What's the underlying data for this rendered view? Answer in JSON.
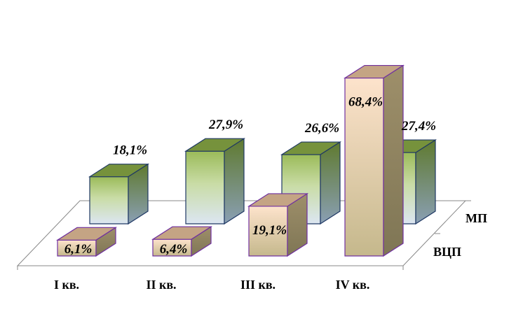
{
  "chart_data": {
    "type": "bar",
    "subtype": "3d-clustered-depth",
    "categories": [
      "I кв.",
      "II кв.",
      "III кв.",
      "IV кв."
    ],
    "series": [
      {
        "name": "МП",
        "values": [
          18.1,
          27.9,
          26.6,
          27.4
        ],
        "labels": [
          "18,1%",
          "27,9%",
          "26,6%",
          "27,4%"
        ],
        "color": "#9bbb59",
        "top_color": "#76923c"
      },
      {
        "name": "ВЦП",
        "values": [
          6.1,
          6.4,
          19.1,
          68.4
        ],
        "labels": [
          "6,1%",
          "6,4%",
          "19,1%",
          "68,4%"
        ],
        "color": "#fcd5b4",
        "top_color": "#c4a484"
      }
    ],
    "title": "",
    "xlabel": "",
    "ylabel": "",
    "unit": "%",
    "grid": false,
    "legend": "none"
  }
}
